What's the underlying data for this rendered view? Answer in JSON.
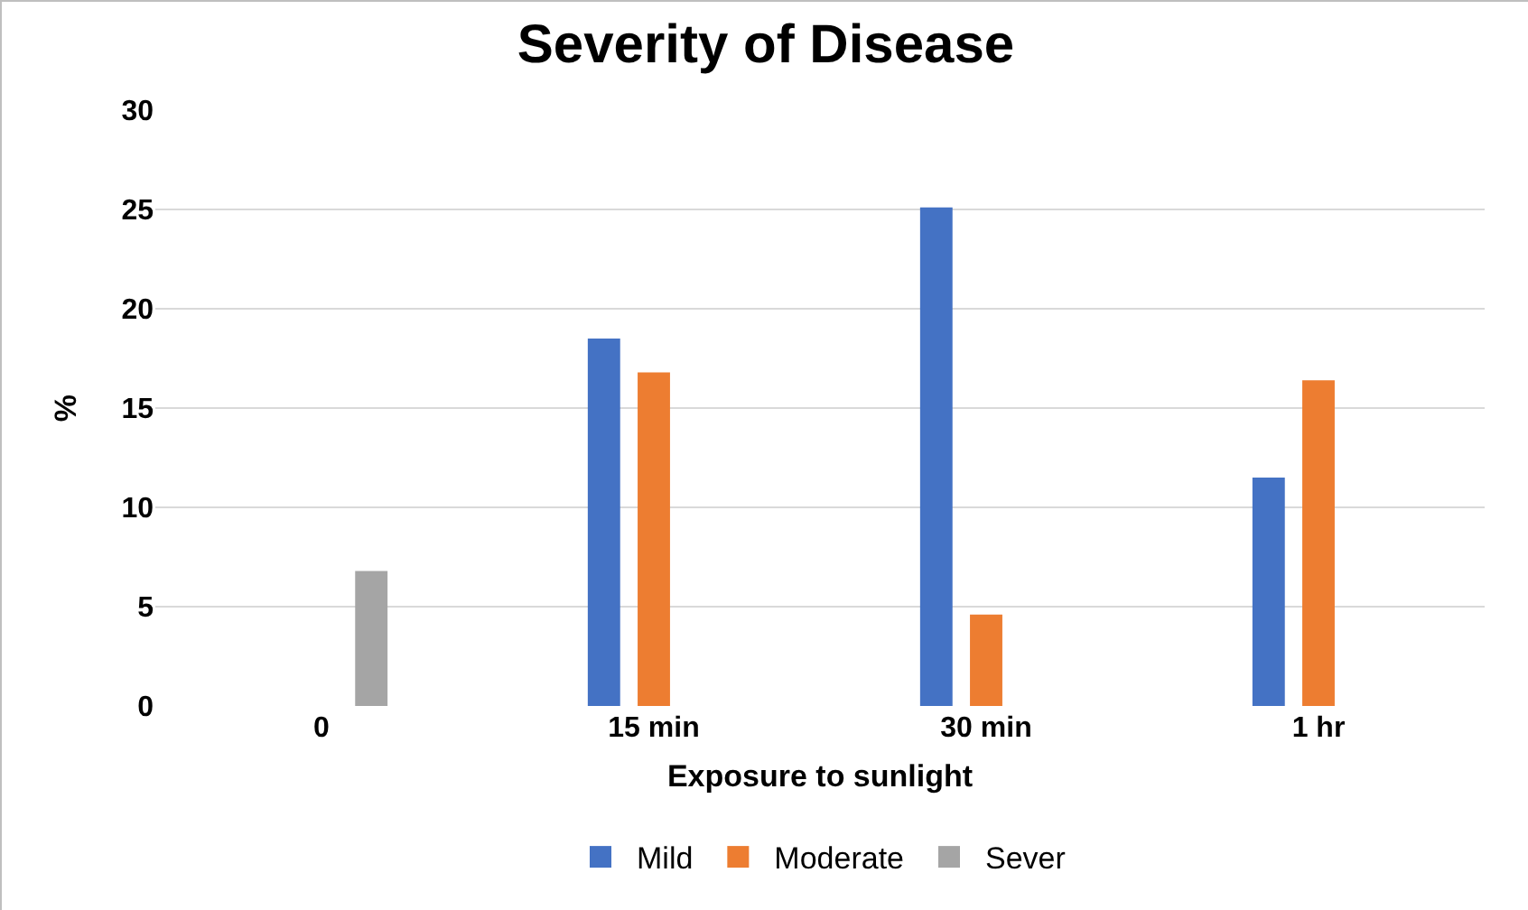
{
  "chart_data": {
    "type": "bar",
    "title": "Severity of Disease",
    "xlabel": "Exposure to sunlight",
    "ylabel": "%",
    "categories": [
      "0",
      "15 min",
      "30 min",
      "1 hr"
    ],
    "series": [
      {
        "name": "Mild",
        "color": "#4472c4",
        "values": [
          null,
          18.5,
          25.1,
          11.5
        ]
      },
      {
        "name": "Moderate",
        "color": "#ed7d31",
        "values": [
          null,
          16.8,
          4.6,
          16.4
        ]
      },
      {
        "name": "Sever",
        "color": "#a5a5a5",
        "values": [
          6.8,
          null,
          null,
          null
        ]
      }
    ],
    "ylim": [
      0,
      30
    ],
    "yticks": [
      0,
      5,
      10,
      15,
      20,
      25,
      30
    ],
    "grid": "y",
    "legend": "bottom"
  }
}
